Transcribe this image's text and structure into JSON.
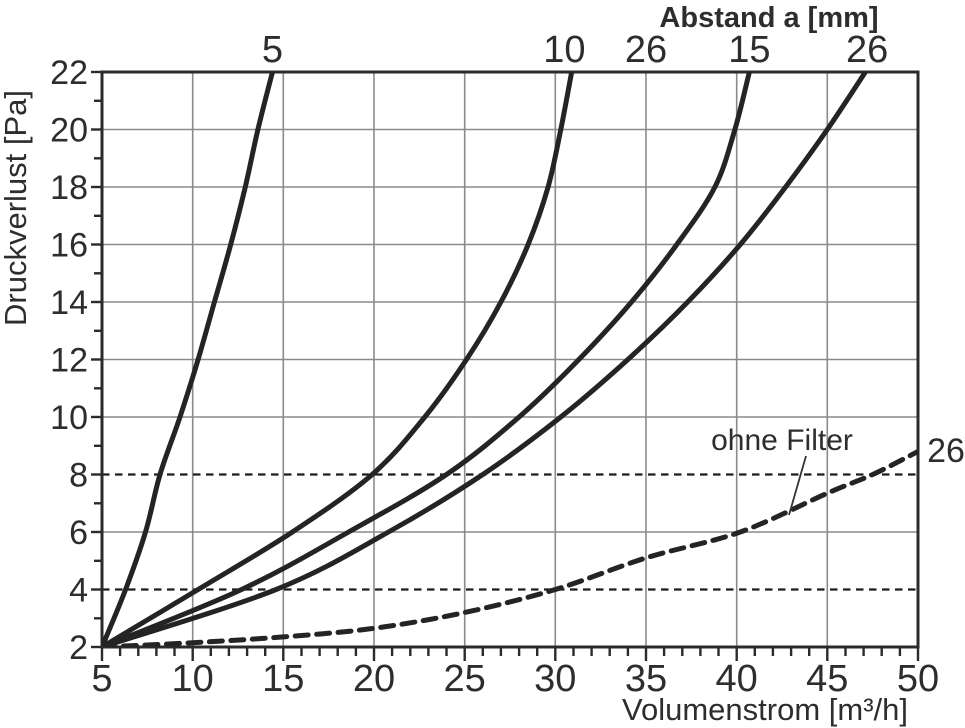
{
  "figure": {
    "background": "#ffffff"
  },
  "top_axis": {
    "title": "Abstand a [mm]",
    "labels": [
      {
        "text": "5",
        "x": 14.4
      },
      {
        "text": "10",
        "x": 30.5
      },
      {
        "text": "26",
        "x": 35.0
      },
      {
        "text": "15",
        "x": 40.7
      },
      {
        "text": "26",
        "x": 47.2
      }
    ]
  },
  "annotations": {
    "ohne_filter": {
      "text": "ohne Filter"
    },
    "dashed_end_label": {
      "text": "26"
    }
  },
  "colors": {
    "curve": "#242424",
    "grid": "#8a8a8a",
    "border": "#2b2b2b",
    "text": "#2d2d2d",
    "reference_line": "#1c1c1c",
    "background": "#ffffff"
  },
  "chart_data": {
    "type": "line",
    "title": "Abstand a [mm]",
    "xlabel": "Volumenstrom [m³/h]",
    "ylabel": "Druckverlust [Pa]",
    "xlim": [
      5,
      50
    ],
    "ylim": [
      2,
      22
    ],
    "x_major_ticks": [
      5,
      10,
      15,
      20,
      25,
      30,
      35,
      40,
      45,
      50
    ],
    "x_minor_step": 1,
    "y_major_ticks": [
      2,
      4,
      6,
      8,
      10,
      12,
      14,
      16,
      18,
      20,
      22
    ],
    "y_minor_step": 1,
    "grid": "major",
    "reference_lines_y": [
      4,
      8
    ],
    "legend_position": "labels-above-top-axis",
    "series": [
      {
        "name": "abstand-5mm",
        "abstand_mm": 5,
        "top_label": "5",
        "style": "solid",
        "points": [
          [
            5,
            2
          ],
          [
            6.3,
            4
          ],
          [
            7.4,
            6
          ],
          [
            8.2,
            8
          ],
          [
            9.3,
            10
          ],
          [
            10.3,
            12
          ],
          [
            11.2,
            14
          ],
          [
            12.1,
            16
          ],
          [
            12.9,
            18
          ],
          [
            13.6,
            20
          ],
          [
            14.4,
            22
          ]
        ]
      },
      {
        "name": "abstand-10mm",
        "abstand_mm": 10,
        "top_label": "10",
        "style": "solid",
        "points": [
          [
            5,
            2
          ],
          [
            10.3,
            4
          ],
          [
            15.5,
            6
          ],
          [
            19.9,
            8
          ],
          [
            22.8,
            10
          ],
          [
            25.1,
            12
          ],
          [
            27.0,
            14
          ],
          [
            28.5,
            16
          ],
          [
            29.6,
            18
          ],
          [
            30.3,
            20
          ],
          [
            30.9,
            22
          ]
        ]
      },
      {
        "name": "abstand-15mm",
        "abstand_mm": 15,
        "top_label": "15",
        "style": "solid",
        "points": [
          [
            5,
            2
          ],
          [
            12.7,
            4
          ],
          [
            18.6,
            6
          ],
          [
            24.0,
            8
          ],
          [
            28.0,
            10
          ],
          [
            31.3,
            12
          ],
          [
            34.2,
            14
          ],
          [
            36.7,
            16
          ],
          [
            38.8,
            18
          ],
          [
            39.9,
            20
          ],
          [
            40.7,
            22
          ]
        ]
      },
      {
        "name": "abstand-26mm",
        "abstand_mm": 26,
        "top_label": "26",
        "style": "solid",
        "points": [
          [
            5,
            2
          ],
          [
            14.6,
            4
          ],
          [
            20.8,
            6
          ],
          [
            26.0,
            8
          ],
          [
            30.3,
            10
          ],
          [
            34.0,
            12
          ],
          [
            37.3,
            14
          ],
          [
            40.2,
            16
          ],
          [
            42.7,
            18
          ],
          [
            45.0,
            20
          ],
          [
            47.1,
            22
          ]
        ]
      },
      {
        "name": "ohne-filter",
        "abstand_mm": 26,
        "top_label": "26",
        "style": "dashed",
        "points": [
          [
            5,
            2
          ],
          [
            10,
            2.15
          ],
          [
            15,
            2.35
          ],
          [
            20,
            2.65
          ],
          [
            25,
            3.2
          ],
          [
            30,
            4.0
          ],
          [
            35,
            5.1
          ],
          [
            40.2,
            6.0
          ],
          [
            45,
            7.35
          ],
          [
            47.5,
            8.0
          ],
          [
            50,
            8.8
          ]
        ]
      }
    ]
  }
}
